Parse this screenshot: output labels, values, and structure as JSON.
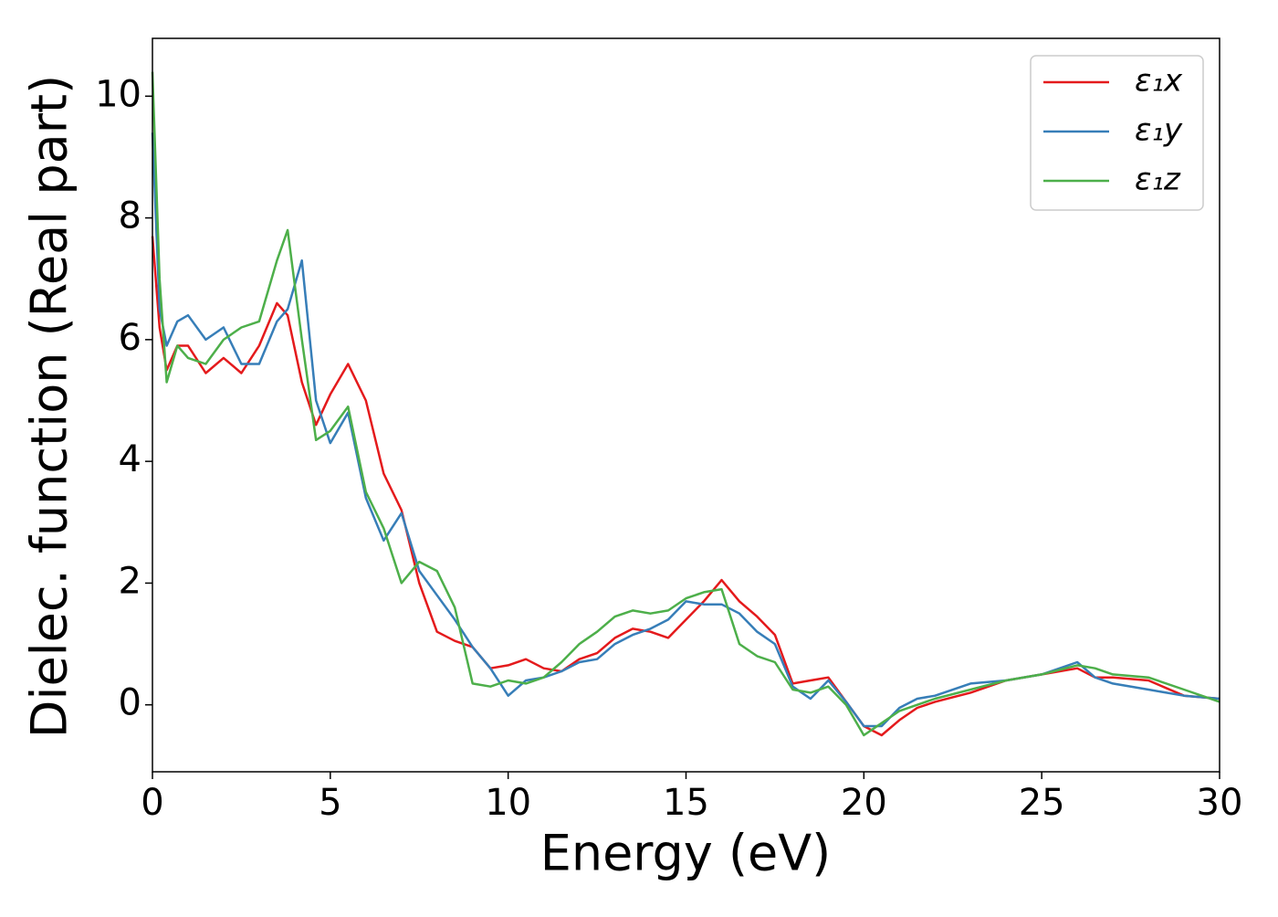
{
  "chart_data": {
    "type": "line",
    "xlabel": "Energy (eV)",
    "ylabel": "Dielec. function (Real part)",
    "x": [
      0,
      0.2,
      0.4,
      0.7,
      1,
      1.5,
      2,
      2.5,
      3,
      3.5,
      3.8,
      4.2,
      4.6,
      5,
      5.5,
      6,
      6.5,
      7,
      7.5,
      8,
      8.5,
      9,
      9.5,
      10,
      10.5,
      11,
      11.5,
      12,
      12.5,
      13,
      13.5,
      14,
      14.5,
      15,
      15.5,
      16,
      16.5,
      17,
      17.5,
      18,
      18.5,
      19,
      19.5,
      20,
      20.5,
      21,
      21.5,
      22,
      23,
      24,
      25,
      26,
      26.5,
      27,
      28,
      29,
      30
    ],
    "series": [
      {
        "name": "ε₁x",
        "color": "#e41a1c",
        "values": [
          7.7,
          6.2,
          5.5,
          5.9,
          5.9,
          5.45,
          5.7,
          5.45,
          5.9,
          6.6,
          6.4,
          5.3,
          4.6,
          5.1,
          5.6,
          5.0,
          3.8,
          3.2,
          2.0,
          1.2,
          1.05,
          0.95,
          0.6,
          0.65,
          0.75,
          0.6,
          0.55,
          0.75,
          0.85,
          1.1,
          1.25,
          1.2,
          1.1,
          1.4,
          1.7,
          2.05,
          1.7,
          1.45,
          1.15,
          0.35,
          0.4,
          0.45,
          0.05,
          -0.35,
          -0.5,
          -0.25,
          -0.05,
          0.05,
          0.2,
          0.4,
          0.5,
          0.6,
          0.45,
          0.45,
          0.4,
          0.15,
          0.1
        ]
      },
      {
        "name": "ε₁y",
        "color": "#377eb8",
        "values": [
          9.4,
          6.5,
          5.9,
          6.3,
          6.4,
          6.0,
          6.2,
          5.6,
          5.6,
          6.3,
          6.5,
          7.3,
          5.0,
          4.3,
          4.8,
          3.4,
          2.7,
          3.15,
          2.2,
          1.8,
          1.4,
          0.95,
          0.6,
          0.15,
          0.4,
          0.45,
          0.55,
          0.7,
          0.75,
          1.0,
          1.15,
          1.25,
          1.4,
          1.7,
          1.65,
          1.65,
          1.5,
          1.2,
          1.0,
          0.3,
          0.1,
          0.4,
          0.05,
          -0.35,
          -0.35,
          -0.05,
          0.1,
          0.15,
          0.35,
          0.4,
          0.5,
          0.7,
          0.45,
          0.35,
          0.25,
          0.15,
          0.1
        ]
      },
      {
        "name": "ε₁z",
        "color": "#4daf4a",
        "values": [
          10.4,
          7.0,
          5.3,
          5.9,
          5.7,
          5.6,
          6.0,
          6.2,
          6.3,
          7.3,
          7.8,
          6.0,
          4.35,
          4.5,
          4.9,
          3.5,
          2.9,
          2.0,
          2.35,
          2.2,
          1.6,
          0.35,
          0.3,
          0.4,
          0.35,
          0.45,
          0.7,
          1.0,
          1.2,
          1.45,
          1.55,
          1.5,
          1.55,
          1.75,
          1.85,
          1.9,
          1.0,
          0.8,
          0.7,
          0.25,
          0.2,
          0.3,
          0.0,
          -0.5,
          -0.3,
          -0.1,
          0.0,
          0.1,
          0.25,
          0.4,
          0.5,
          0.65,
          0.6,
          0.5,
          0.45,
          0.25,
          0.05
        ]
      }
    ],
    "xlim": [
      0,
      30
    ],
    "xticks": [
      0,
      5,
      10,
      15,
      20,
      25,
      30
    ],
    "ylim": [
      -1.1,
      10.95
    ],
    "yticks": [
      0,
      2,
      4,
      6,
      8,
      10
    ],
    "grid": false,
    "legend": "upper right"
  }
}
